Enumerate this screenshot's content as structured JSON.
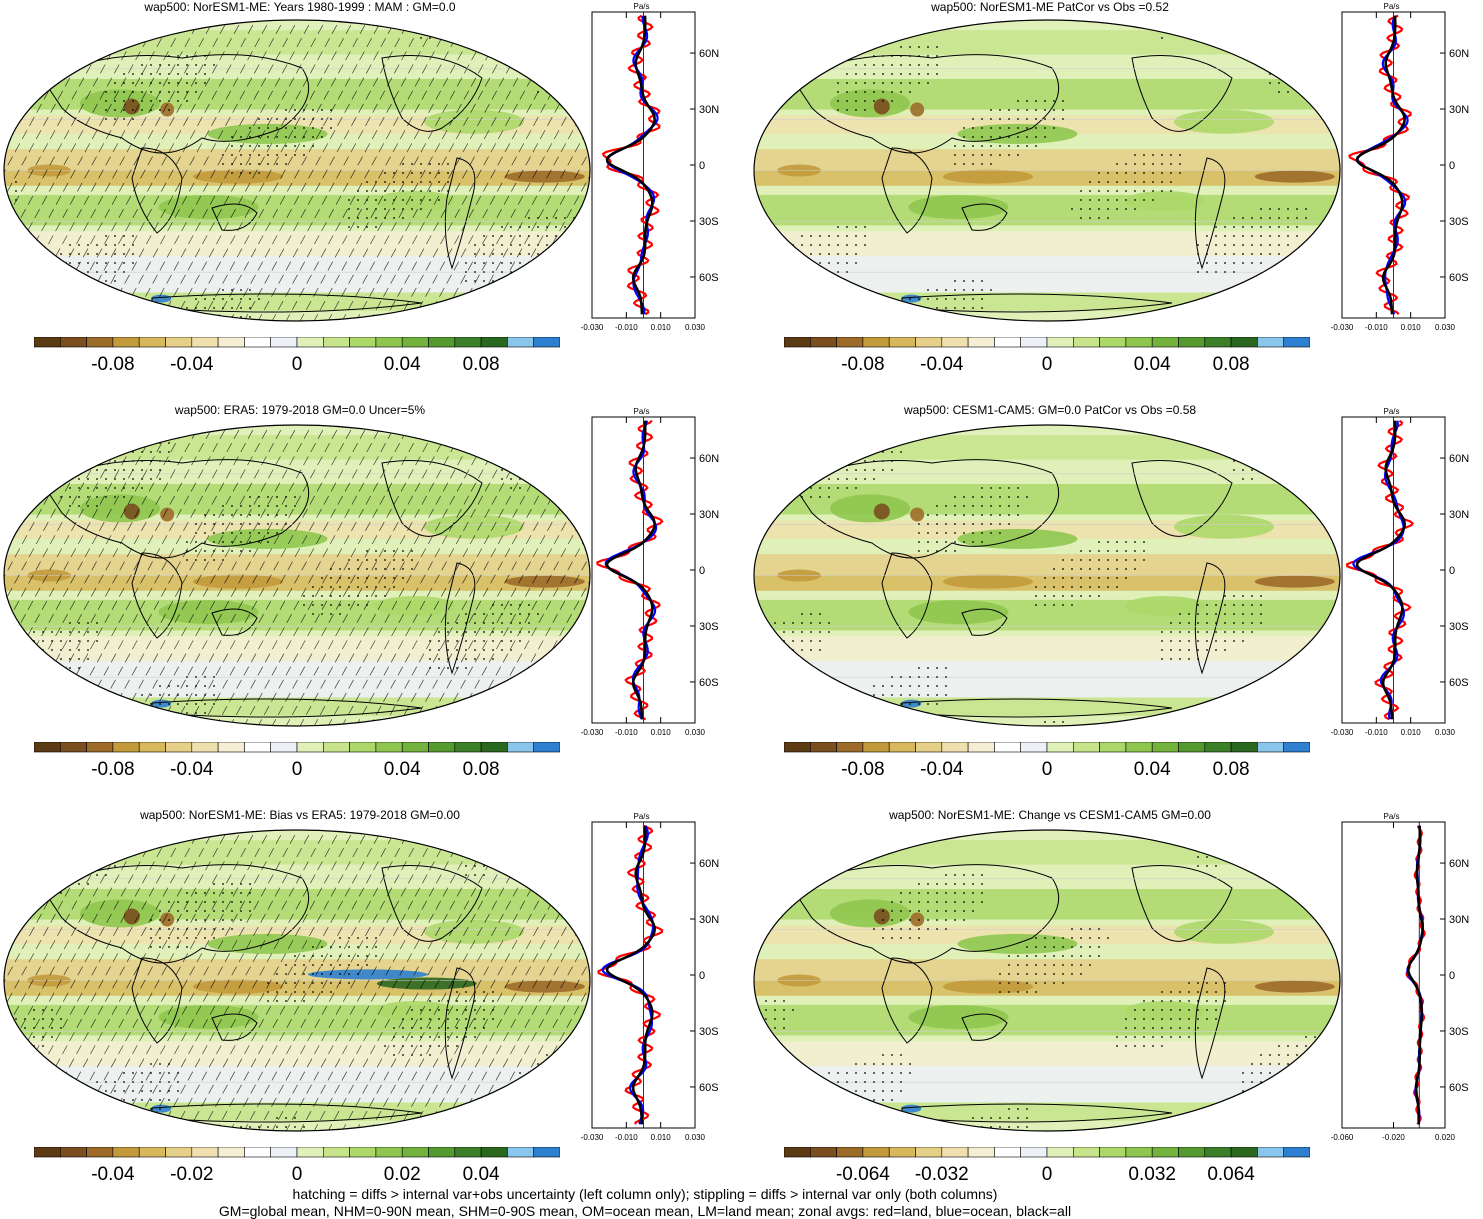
{
  "panels": [
    {
      "title": "wap500: NorESM1-ME: Years 1980-1999 : MAM : GM=0.0",
      "cbar_labels": [
        "-0.08",
        "-0.04",
        "0",
        "0.04",
        "0.08"
      ],
      "zonal_ticks": [
        "-0.030",
        "-0.010",
        "0.010",
        "0.030"
      ],
      "zonal_unit": "Pa/s",
      "lat_labels": [
        "60N",
        "30N",
        "0",
        "30S",
        "60S"
      ]
    },
    {
      "title": "wap500: NorESM1-ME PatCor vs Obs =0.52",
      "cbar_labels": [
        "-0.08",
        "-0.04",
        "0",
        "0.04",
        "0.08"
      ],
      "zonal_ticks": [
        "-0.030",
        "-0.010",
        "0.010",
        "0.030"
      ],
      "zonal_unit": "Pa/s",
      "lat_labels": [
        "60N",
        "30N",
        "0",
        "30S",
        "60S"
      ]
    },
    {
      "title": "wap500: ERA5: 1979-2018 GM=0.0 Uncer=5%",
      "cbar_labels": [
        "-0.08",
        "-0.04",
        "0",
        "0.04",
        "0.08"
      ],
      "zonal_ticks": [
        "-0.030",
        "-0.010",
        "0.010",
        "0.030"
      ],
      "zonal_unit": "Pa/s",
      "lat_labels": [
        "60N",
        "30N",
        "0",
        "30S",
        "60S"
      ]
    },
    {
      "title": "wap500: CESM1-CAM5: GM=0.0 PatCor vs Obs =0.58",
      "cbar_labels": [
        "-0.08",
        "-0.04",
        "0",
        "0.04",
        "0.08"
      ],
      "zonal_ticks": [
        "-0.030",
        "-0.010",
        "0.010",
        "0.030"
      ],
      "zonal_unit": "Pa/s",
      "lat_labels": [
        "60N",
        "30N",
        "0",
        "30S",
        "60S"
      ]
    },
    {
      "title": "wap500: NorESM1-ME: Bias vs ERA5: 1979-2018 GM=0.00",
      "cbar_labels": [
        "-0.04",
        "-0.02",
        "0",
        "0.02",
        "0.04"
      ],
      "zonal_ticks": [
        "-0.030",
        "-0.010",
        "0.010",
        "0.030"
      ],
      "zonal_unit": "Pa/s",
      "lat_labels": [
        "60N",
        "30N",
        "0",
        "30S",
        "60S"
      ]
    },
    {
      "title": "wap500: NorESM1-ME: Change vs CESM1-CAM5 GM=0.00",
      "cbar_labels": [
        "-0.064",
        "-0.032",
        "0",
        "0.032",
        "0.064"
      ],
      "zonal_ticks": [
        "-0.060",
        "-0.020",
        "0.020"
      ],
      "zonal_unit": "Pa/s",
      "lat_labels": [
        "60N",
        "30N",
        "0",
        "30S",
        "60S"
      ]
    }
  ],
  "colorbar_colors": [
    "#5c3a14",
    "#7a4e1e",
    "#9c6b2a",
    "#c29a3c",
    "#d8b85c",
    "#e6cf88",
    "#efe0ad",
    "#f6eed3",
    "#ffffff",
    "#eef0f8",
    "#dff0b8",
    "#c7e48c",
    "#acd86a",
    "#8fc650",
    "#72b23d",
    "#559a30",
    "#3b7f28",
    "#2a6820",
    "#8ac6ec",
    "#2f7fd0"
  ],
  "zonal_series_colors": {
    "land": "#ff0000",
    "ocean": "#0000ff",
    "all": "#000000"
  },
  "footer": {
    "line1": "hatching = diffs > internal var+obs uncertainty (left column only); stippling = diffs > internal var only (both columns)",
    "line2": "GM=global mean, NHM=0-90N mean, SHM=0-90S mean, OM=ocean mean, LM=land mean; zonal avgs: red=land, blue=ocean, black=all"
  },
  "chart_data": [
    {
      "type": "heatmap",
      "title": "wap500: NorESM1-ME: Years 1980-1999 : MAM : GM=0.0",
      "colorbar_range": [
        -0.1,
        0.1
      ],
      "zonal_xlim": [
        -0.03,
        0.03
      ],
      "zonal_lat": [
        -80,
        -60,
        -30,
        0,
        30,
        60,
        80
      ]
    },
    {
      "type": "heatmap",
      "title": "wap500: NorESM1-ME PatCor vs Obs =0.52",
      "colorbar_range": [
        -0.1,
        0.1
      ],
      "zonal_xlim": [
        -0.03,
        0.03
      ]
    },
    {
      "type": "heatmap",
      "title": "wap500: ERA5: 1979-2018 GM=0.0 Uncer=5%",
      "colorbar_range": [
        -0.1,
        0.1
      ],
      "zonal_xlim": [
        -0.03,
        0.03
      ]
    },
    {
      "type": "heatmap",
      "title": "wap500: CESM1-CAM5: GM=0.0 PatCor vs Obs =0.58",
      "colorbar_range": [
        -0.1,
        0.1
      ],
      "zonal_xlim": [
        -0.03,
        0.03
      ]
    },
    {
      "type": "heatmap",
      "title": "wap500: NorESM1-ME: Bias vs ERA5: 1979-2018 GM=0.00",
      "colorbar_range": [
        -0.05,
        0.05
      ],
      "zonal_xlim": [
        -0.03,
        0.03
      ]
    },
    {
      "type": "heatmap",
      "title": "wap500: NorESM1-ME: Change vs CESM1-CAM5 GM=0.00",
      "colorbar_range": [
        -0.08,
        0.08
      ],
      "zonal_xlim": [
        -0.06,
        0.02
      ]
    }
  ]
}
